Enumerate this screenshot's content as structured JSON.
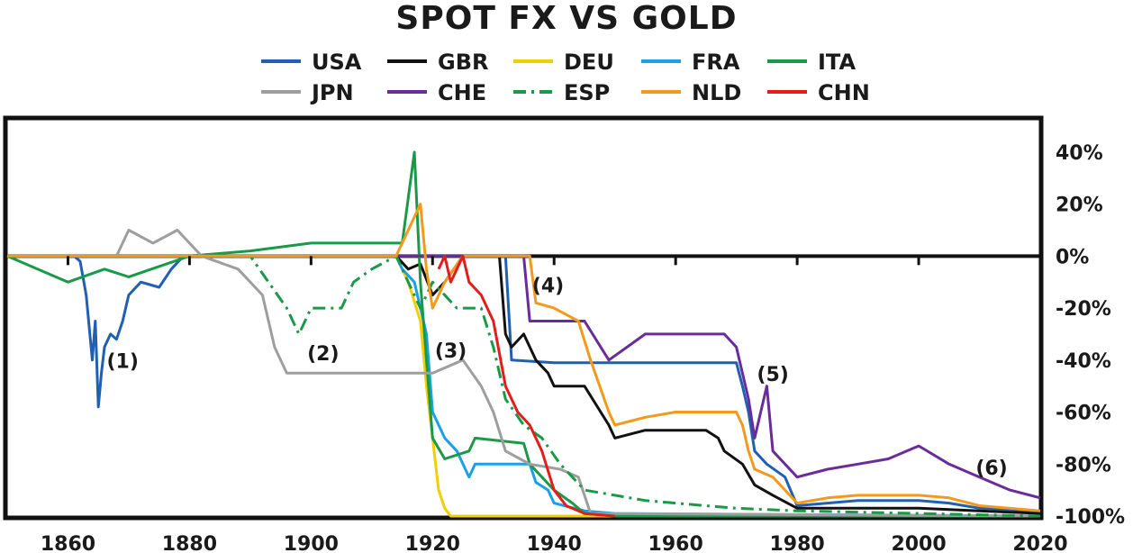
{
  "chart_data": {
    "type": "line",
    "title": "SPOT FX VS GOLD",
    "xlabel": "",
    "ylabel": "",
    "xlim": [
      1850,
      2020
    ],
    "ylim": [
      -100,
      50
    ],
    "x_ticks": [
      1860,
      1880,
      1900,
      1920,
      1940,
      1960,
      1980,
      2000,
      2020
    ],
    "y_ticks": [
      {
        "value": 40,
        "label": "40%"
      },
      {
        "value": 20,
        "label": "20%"
      },
      {
        "value": 0,
        "label": "0%"
      },
      {
        "value": -20,
        "label": "-20%"
      },
      {
        "value": -40,
        "label": "-40%"
      },
      {
        "value": -60,
        "label": "-60%"
      },
      {
        "value": -80,
        "label": "-80%"
      },
      {
        "value": -100,
        "label": "-100%"
      }
    ],
    "legend_position": "top",
    "series": [
      {
        "name": "USA",
        "color": "#1f5fb4",
        "dash": "solid",
        "points": [
          [
            1850,
            0
          ],
          [
            1861,
            0
          ],
          [
            1862,
            -2
          ],
          [
            1863,
            -15
          ],
          [
            1864,
            -40
          ],
          [
            1864.5,
            -25
          ],
          [
            1865,
            -58
          ],
          [
            1865.5,
            -45
          ],
          [
            1866,
            -35
          ],
          [
            1867,
            -30
          ],
          [
            1868,
            -32
          ],
          [
            1869,
            -25
          ],
          [
            1870,
            -15
          ],
          [
            1872,
            -10
          ],
          [
            1875,
            -12
          ],
          [
            1877,
            -5
          ],
          [
            1879,
            0
          ],
          [
            1932,
            0
          ],
          [
            1933,
            -40
          ],
          [
            1940,
            -41
          ],
          [
            1945,
            -41
          ],
          [
            1950,
            -41
          ],
          [
            1955,
            -41
          ],
          [
            1960,
            -41
          ],
          [
            1965,
            -41
          ],
          [
            1970,
            -41
          ],
          [
            1971,
            -50
          ],
          [
            1972,
            -60
          ],
          [
            1973,
            -75
          ],
          [
            1975,
            -80
          ],
          [
            1978,
            -85
          ],
          [
            1980,
            -96
          ],
          [
            1985,
            -95
          ],
          [
            1990,
            -94
          ],
          [
            2000,
            -94
          ],
          [
            2005,
            -95
          ],
          [
            2010,
            -97
          ],
          [
            2020,
            -98
          ]
        ]
      },
      {
        "name": "GBR",
        "color": "#111111",
        "dash": "solid",
        "points": [
          [
            1850,
            0
          ],
          [
            1914,
            0
          ],
          [
            1916,
            -5
          ],
          [
            1918,
            -3
          ],
          [
            1920,
            -15
          ],
          [
            1922,
            -10
          ],
          [
            1925,
            0
          ],
          [
            1931,
            0
          ],
          [
            1932,
            -30
          ],
          [
            1933,
            -35
          ],
          [
            1935,
            -30
          ],
          [
            1937,
            -40
          ],
          [
            1939,
            -45
          ],
          [
            1940,
            -50
          ],
          [
            1945,
            -50
          ],
          [
            1949,
            -65
          ],
          [
            1950,
            -70
          ],
          [
            1955,
            -67
          ],
          [
            1960,
            -67
          ],
          [
            1965,
            -67
          ],
          [
            1967,
            -70
          ],
          [
            1968,
            -75
          ],
          [
            1971,
            -80
          ],
          [
            1973,
            -88
          ],
          [
            1976,
            -92
          ],
          [
            1980,
            -97
          ],
          [
            1990,
            -97
          ],
          [
            2000,
            -97
          ],
          [
            2010,
            -98
          ],
          [
            2020,
            -99
          ]
        ]
      },
      {
        "name": "DEU",
        "color": "#f2cf00",
        "dash": "solid",
        "points": [
          [
            1850,
            0
          ],
          [
            1914,
            0
          ],
          [
            1916,
            -10
          ],
          [
            1918,
            -25
          ],
          [
            1919,
            -50
          ],
          [
            1920,
            -70
          ],
          [
            1921,
            -90
          ],
          [
            1922,
            -97
          ],
          [
            1923,
            -100
          ],
          [
            1930,
            -100
          ],
          [
            1950,
            -100
          ],
          [
            2020,
            -100
          ]
        ]
      },
      {
        "name": "FRA",
        "color": "#1aa0e6",
        "dash": "solid",
        "points": [
          [
            1850,
            0
          ],
          [
            1914,
            0
          ],
          [
            1915,
            -5
          ],
          [
            1917,
            -10
          ],
          [
            1919,
            -30
          ],
          [
            1920,
            -60
          ],
          [
            1922,
            -70
          ],
          [
            1924,
            -75
          ],
          [
            1926,
            -85
          ],
          [
            1927,
            -80
          ],
          [
            1936,
            -80
          ],
          [
            1937,
            -87
          ],
          [
            1939,
            -90
          ],
          [
            1940,
            -95
          ],
          [
            1945,
            -98
          ],
          [
            1950,
            -99
          ],
          [
            2020,
            -100
          ]
        ]
      },
      {
        "name": "ITA",
        "color": "#1a9a48",
        "dash": "solid",
        "points": [
          [
            1850,
            0
          ],
          [
            1855,
            -5
          ],
          [
            1860,
            -10
          ],
          [
            1866,
            -5
          ],
          [
            1870,
            -8
          ],
          [
            1880,
            0
          ],
          [
            1890,
            2
          ],
          [
            1900,
            5
          ],
          [
            1915,
            5
          ],
          [
            1917,
            40
          ],
          [
            1918,
            -10
          ],
          [
            1919,
            -40
          ],
          [
            1920,
            -70
          ],
          [
            1922,
            -78
          ],
          [
            1926,
            -75
          ],
          [
            1927,
            -70
          ],
          [
            1935,
            -72
          ],
          [
            1936,
            -80
          ],
          [
            1940,
            -90
          ],
          [
            1943,
            -95
          ],
          [
            1945,
            -99
          ],
          [
            1950,
            -100
          ],
          [
            2020,
            -100
          ]
        ]
      },
      {
        "name": "JPN",
        "color": "#9e9e9e",
        "dash": "solid",
        "points": [
          [
            1850,
            0
          ],
          [
            1868,
            0
          ],
          [
            1870,
            10
          ],
          [
            1874,
            5
          ],
          [
            1878,
            10
          ],
          [
            1882,
            0
          ],
          [
            1888,
            -5
          ],
          [
            1892,
            -15
          ],
          [
            1894,
            -35
          ],
          [
            1896,
            -45
          ],
          [
            1897,
            -45
          ],
          [
            1910,
            -45
          ],
          [
            1917,
            -45
          ],
          [
            1920,
            -45
          ],
          [
            1925,
            -40
          ],
          [
            1928,
            -50
          ],
          [
            1930,
            -60
          ],
          [
            1932,
            -75
          ],
          [
            1936,
            -80
          ],
          [
            1941,
            -82
          ],
          [
            1944,
            -85
          ],
          [
            1946,
            -99
          ],
          [
            2020,
            -100
          ]
        ]
      },
      {
        "name": "CHE",
        "color": "#6a2c9a",
        "dash": "solid",
        "points": [
          [
            1850,
            0
          ],
          [
            1935,
            0
          ],
          [
            1936,
            -25
          ],
          [
            1940,
            -25
          ],
          [
            1945,
            -25
          ],
          [
            1949,
            -40
          ],
          [
            1952,
            -35
          ],
          [
            1955,
            -30
          ],
          [
            1960,
            -30
          ],
          [
            1965,
            -30
          ],
          [
            1968,
            -30
          ],
          [
            1970,
            -35
          ],
          [
            1972,
            -55
          ],
          [
            1973,
            -70
          ],
          [
            1975,
            -50
          ],
          [
            1976,
            -75
          ],
          [
            1980,
            -85
          ],
          [
            1985,
            -82
          ],
          [
            1990,
            -80
          ],
          [
            1995,
            -78
          ],
          [
            2000,
            -73
          ],
          [
            2005,
            -80
          ],
          [
            2010,
            -85
          ],
          [
            2015,
            -90
          ],
          [
            2020,
            -93
          ]
        ]
      },
      {
        "name": "ESP",
        "color": "#1a9a48",
        "dash": "dashdot",
        "points": [
          [
            1850,
            0
          ],
          [
            1890,
            0
          ],
          [
            1893,
            -10
          ],
          [
            1896,
            -20
          ],
          [
            1898,
            -30
          ],
          [
            1900,
            -20
          ],
          [
            1905,
            -20
          ],
          [
            1907,
            -10
          ],
          [
            1910,
            -5
          ],
          [
            1914,
            0
          ],
          [
            1916,
            -10
          ],
          [
            1918,
            -20
          ],
          [
            1920,
            -10
          ],
          [
            1924,
            -20
          ],
          [
            1928,
            -20
          ],
          [
            1930,
            -35
          ],
          [
            1932,
            -55
          ],
          [
            1935,
            -65
          ],
          [
            1938,
            -70
          ],
          [
            1941,
            -80
          ],
          [
            1945,
            -90
          ],
          [
            1950,
            -92
          ],
          [
            1955,
            -94
          ],
          [
            1960,
            -95
          ],
          [
            1965,
            -96
          ],
          [
            1970,
            -97
          ],
          [
            1980,
            -98
          ],
          [
            2000,
            -99
          ],
          [
            2020,
            -100
          ]
        ]
      },
      {
        "name": "NLD",
        "color": "#f39a1e",
        "dash": "solid",
        "points": [
          [
            1850,
            0
          ],
          [
            1914,
            0
          ],
          [
            1916,
            10
          ],
          [
            1918,
            20
          ],
          [
            1919,
            -5
          ],
          [
            1920,
            -20
          ],
          [
            1922,
            -10
          ],
          [
            1925,
            0
          ],
          [
            1936,
            0
          ],
          [
            1937,
            -18
          ],
          [
            1940,
            -20
          ],
          [
            1944,
            -25
          ],
          [
            1946,
            -40
          ],
          [
            1949,
            -60
          ],
          [
            1950,
            -65
          ],
          [
            1955,
            -62
          ],
          [
            1960,
            -60
          ],
          [
            1965,
            -60
          ],
          [
            1970,
            -60
          ],
          [
            1971,
            -65
          ],
          [
            1972,
            -75
          ],
          [
            1973,
            -82
          ],
          [
            1976,
            -85
          ],
          [
            1980,
            -95
          ],
          [
            1985,
            -93
          ],
          [
            1990,
            -92
          ],
          [
            2000,
            -92
          ],
          [
            2005,
            -93
          ],
          [
            2010,
            -96
          ],
          [
            2020,
            -98
          ]
        ]
      },
      {
        "name": "CHN",
        "color": "#e31c1c",
        "dash": "solid",
        "points": [
          [
            1921,
            -5
          ],
          [
            1922,
            0
          ],
          [
            1923,
            -10
          ],
          [
            1925,
            0
          ],
          [
            1926,
            -10
          ],
          [
            1928,
            -15
          ],
          [
            1930,
            -25
          ],
          [
            1932,
            -50
          ],
          [
            1934,
            -60
          ],
          [
            1936,
            -65
          ],
          [
            1937,
            -70
          ],
          [
            1938,
            -75
          ],
          [
            1940,
            -90
          ],
          [
            1942,
            -96
          ],
          [
            1945,
            -99
          ],
          [
            1950,
            -100
          ]
        ]
      }
    ],
    "annotations": [
      {
        "label": "(1)",
        "x": 1869,
        "y": -43
      },
      {
        "label": "(2)",
        "x": 1902,
        "y": -40
      },
      {
        "label": "(3)",
        "x": 1923,
        "y": -39
      },
      {
        "label": "(4)",
        "x": 1939,
        "y": -14
      },
      {
        "label": "(5)",
        "x": 1976,
        "y": -48
      },
      {
        "label": "(6)",
        "x": 2012,
        "y": -84
      }
    ]
  }
}
